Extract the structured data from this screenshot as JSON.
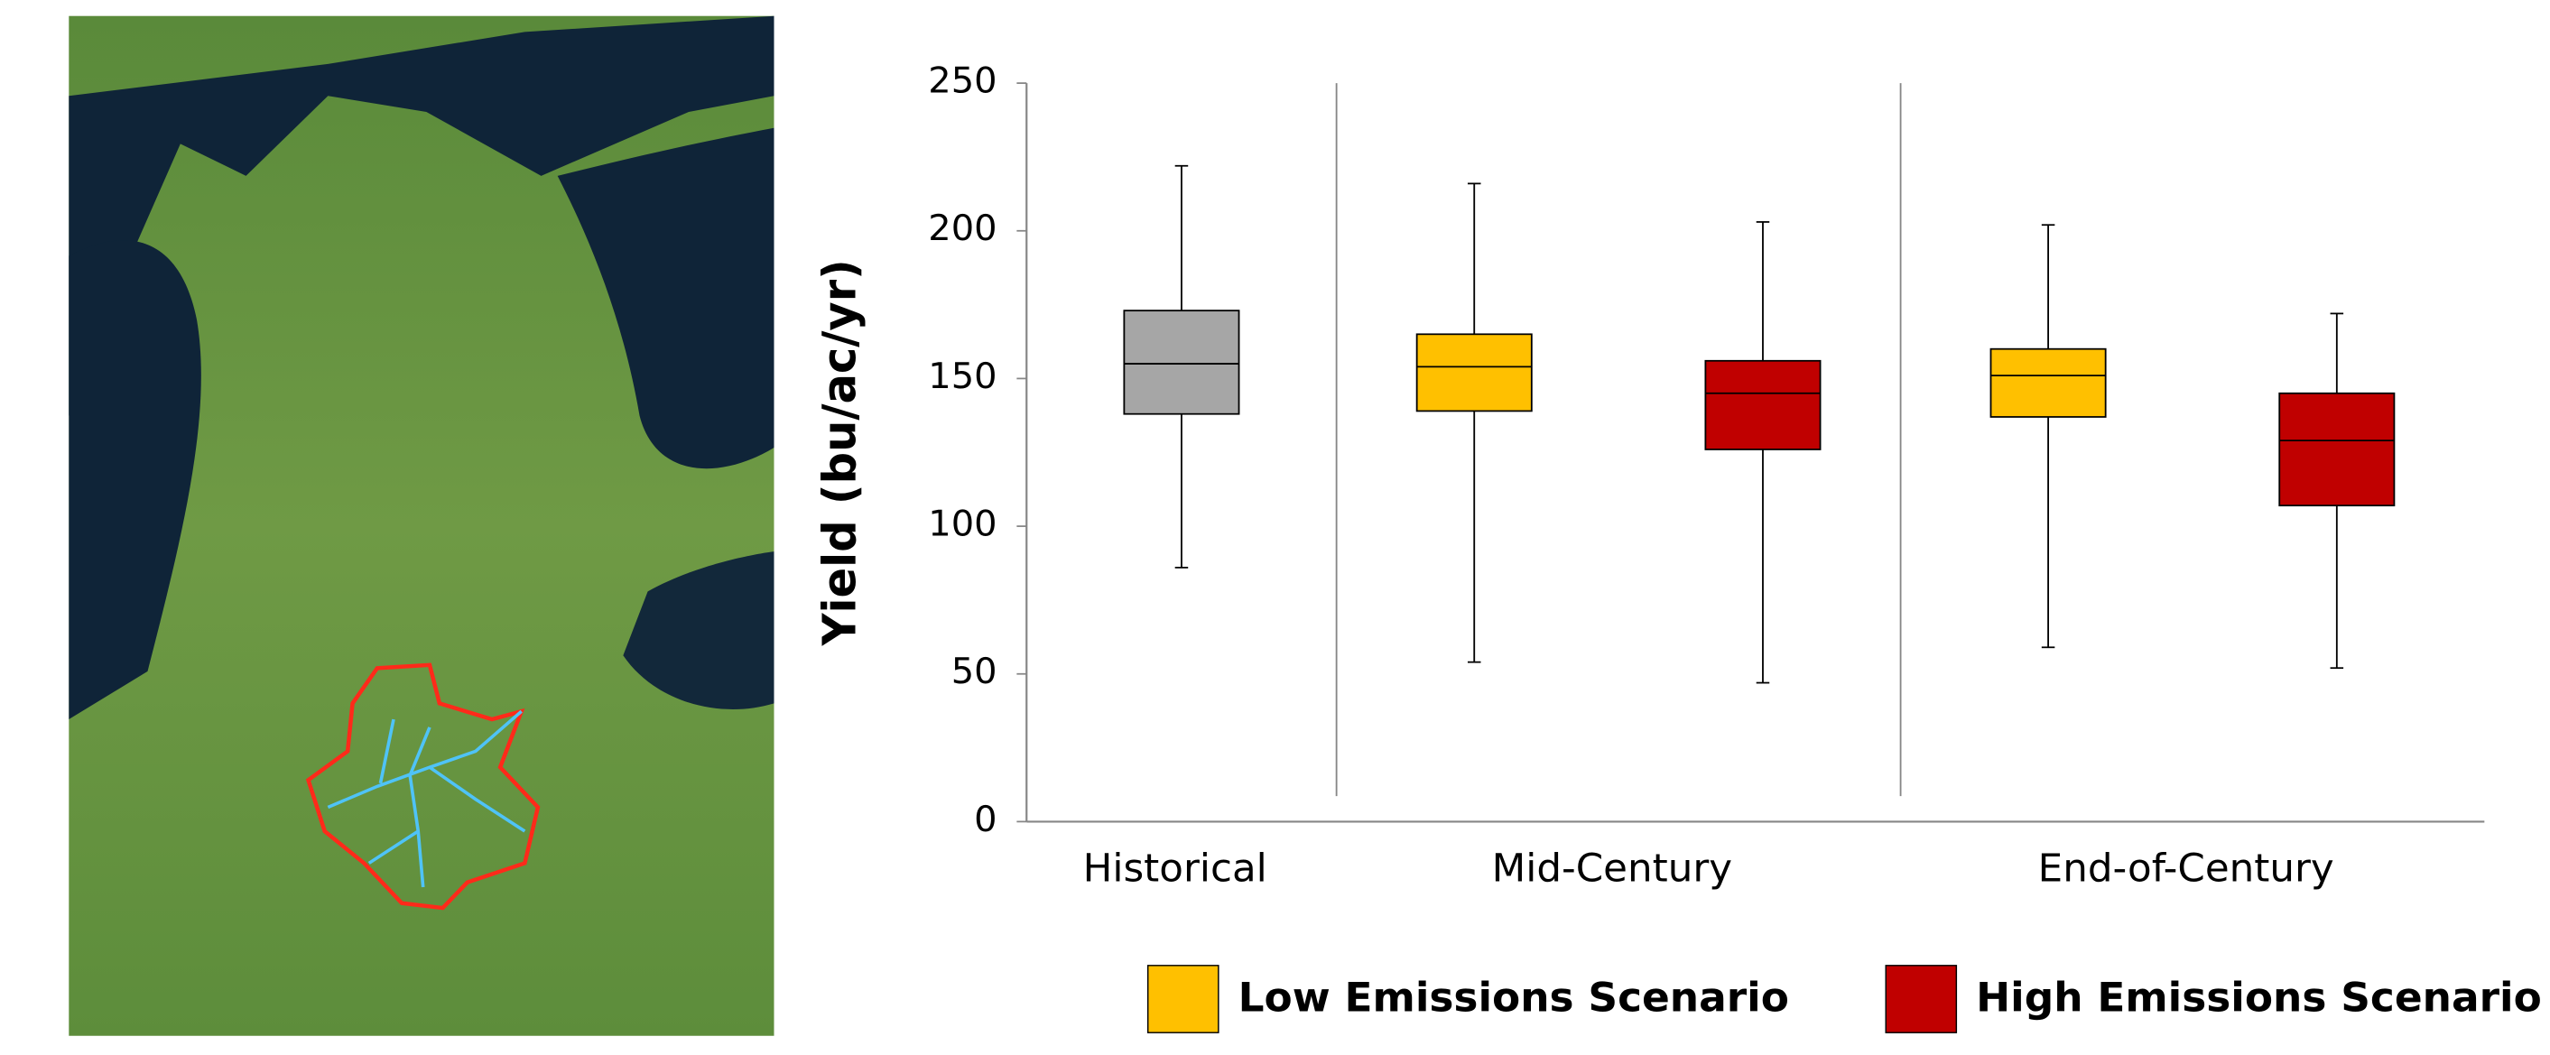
{
  "chart_data": {
    "type": "box",
    "ylabel": "Yield (bu/ac/yr)",
    "categories": [
      "Historical",
      "Mid-Century",
      "End-of-Century"
    ],
    "ylim": [
      0,
      250
    ],
    "yticks": [
      0,
      50,
      100,
      150,
      200,
      250
    ],
    "series": [
      {
        "color": "#a6a6a6",
        "boxes": [
          {
            "min": 86,
            "q1": 138,
            "median": 155,
            "q3": 173,
            "max": 222
          },
          null,
          null
        ]
      },
      {
        "name": "Low Emissions Scenario",
        "color": "#ffc000",
        "boxes": [
          null,
          {
            "min": 54,
            "q1": 139,
            "median": 154,
            "q3": 165,
            "max": 216
          },
          {
            "min": 59,
            "q1": 137,
            "median": 151,
            "q3": 160,
            "max": 202
          }
        ]
      },
      {
        "name": "High Emissions Scenario",
        "color": "#c00000",
        "boxes": [
          null,
          {
            "min": 47,
            "q1": 126,
            "median": 145,
            "q3": 156,
            "max": 203
          },
          {
            "min": 52,
            "q1": 107,
            "median": 129,
            "q3": 145,
            "max": 172
          }
        ]
      }
    ]
  }
}
